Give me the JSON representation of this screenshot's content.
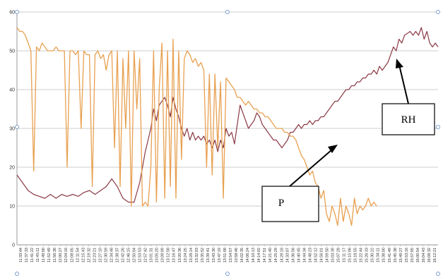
{
  "chart_data": {
    "type": "line",
    "title": "",
    "xlabel": "",
    "ylabel": "",
    "ylim": [
      0,
      60
    ],
    "yticks": [
      0,
      10,
      20,
      30,
      40,
      50,
      60
    ],
    "grid": true,
    "legend": "none",
    "x_tick_labels": [
      "11:33:44",
      "11:37:33",
      "11:41:22",
      "11:45:11",
      "11:49:00",
      "11:52:49",
      "11:56:38",
      "12:00:27",
      "12:04:16",
      "12:08:05",
      "12:11:54",
      "12:15:43",
      "12:19:32",
      "12:23:21",
      "12:27:10",
      "12:30:59",
      "12:34:48",
      "12:38:37",
      "12:42:26",
      "12:46:15",
      "12:50:04",
      "12:53:53",
      "12:57:42",
      "13:01:31",
      "13:05:20",
      "13:09:09",
      "13:12:58",
      "13:16:47",
      "13:20:36",
      "13:24:25",
      "13:28:14",
      "13:32:03",
      "13:35:52",
      "13:39:41",
      "13:43:30",
      "13:47:19",
      "13:51:08",
      "13:54:57",
      "13:58:46",
      "14:02:35",
      "14:06:24",
      "14:10:13",
      "14:14:02",
      "14:17:51",
      "14:21:40",
      "14:25:29",
      "14:29:18",
      "14:33:07",
      "14:36:56",
      "14:40:45",
      "14:44:34",
      "14:48:23",
      "14:52:12",
      "14:56:01",
      "14:59:50",
      "15:03:39",
      "15:07:28",
      "15:11:17",
      "15:15:06",
      "15:18:55",
      "15:22:44",
      "15:26:33",
      "15:30:22",
      "15:34:11",
      "15:38:00",
      "15:41:49",
      "15:45:38",
      "15:49:27",
      "15:53:16",
      "15:57:05",
      "16:00:54",
      "16:04:43",
      "16:08:32",
      "16:12:21"
    ],
    "series": [
      {
        "name": "RH",
        "color": "#8b3a45",
        "values": [
          [
            0,
            18
          ],
          [
            2,
            16
          ],
          [
            4,
            14
          ],
          [
            6,
            13
          ],
          [
            8,
            12.5
          ],
          [
            10,
            12
          ],
          [
            12,
            13
          ],
          [
            14,
            12
          ],
          [
            16,
            13
          ],
          [
            18,
            12.5
          ],
          [
            20,
            13
          ],
          [
            22,
            12.5
          ],
          [
            24,
            13.5
          ],
          [
            26,
            14
          ],
          [
            28,
            13
          ],
          [
            30,
            14
          ],
          [
            32,
            15
          ],
          [
            34,
            17
          ],
          [
            36,
            15
          ],
          [
            38,
            12
          ],
          [
            40,
            11
          ],
          [
            42,
            11
          ],
          [
            44,
            16
          ],
          [
            46,
            24
          ],
          [
            48,
            30
          ],
          [
            49,
            35
          ],
          [
            50,
            32
          ],
          [
            51,
            36
          ],
          [
            52,
            37
          ],
          [
            53,
            38
          ],
          [
            54,
            36
          ],
          [
            55,
            33
          ],
          [
            56,
            38
          ],
          [
            57,
            35
          ],
          [
            58,
            33
          ],
          [
            59,
            30
          ],
          [
            60,
            28
          ],
          [
            61,
            30
          ],
          [
            62,
            27
          ],
          [
            63,
            29
          ],
          [
            64,
            27
          ],
          [
            65,
            28
          ],
          [
            66,
            27
          ],
          [
            67,
            28
          ],
          [
            68,
            26
          ],
          [
            69,
            27
          ],
          [
            70,
            25
          ],
          [
            71,
            27
          ],
          [
            72,
            24
          ],
          [
            73,
            27
          ],
          [
            74,
            25
          ],
          [
            75,
            30
          ],
          [
            76,
            28
          ],
          [
            77,
            29
          ],
          [
            78,
            26
          ],
          [
            79,
            31
          ],
          [
            80,
            36
          ],
          [
            81,
            34
          ],
          [
            82,
            32
          ],
          [
            83,
            30
          ],
          [
            84,
            31
          ],
          [
            85,
            32
          ],
          [
            86,
            34
          ],
          [
            87,
            33
          ],
          [
            88,
            31
          ],
          [
            89,
            30
          ],
          [
            90,
            29
          ],
          [
            91,
            28
          ],
          [
            92,
            27
          ],
          [
            93,
            27
          ],
          [
            94,
            26
          ],
          [
            95,
            25
          ],
          [
            96,
            26
          ],
          [
            97,
            27
          ],
          [
            98,
            29
          ],
          [
            99,
            29
          ],
          [
            100,
            30
          ],
          [
            101,
            31
          ],
          [
            102,
            30
          ],
          [
            103,
            31
          ],
          [
            104,
            31
          ],
          [
            105,
            32
          ],
          [
            106,
            31
          ],
          [
            107,
            32
          ],
          [
            108,
            32
          ],
          [
            109,
            33
          ],
          [
            110,
            33
          ],
          [
            111,
            34
          ],
          [
            112,
            35
          ],
          [
            113,
            36
          ],
          [
            114,
            37
          ],
          [
            115,
            37
          ],
          [
            116,
            38
          ],
          [
            117,
            39
          ],
          [
            118,
            40
          ],
          [
            119,
            40
          ],
          [
            120,
            41
          ],
          [
            121,
            41
          ],
          [
            122,
            42
          ],
          [
            123,
            42
          ],
          [
            124,
            43
          ],
          [
            125,
            43
          ],
          [
            126,
            44
          ],
          [
            127,
            44
          ],
          [
            128,
            45
          ],
          [
            129,
            44
          ],
          [
            130,
            46
          ],
          [
            131,
            45
          ],
          [
            132,
            46
          ],
          [
            133,
            47
          ],
          [
            134,
            49
          ],
          [
            135,
            51
          ],
          [
            136,
            50
          ],
          [
            137,
            53
          ],
          [
            138,
            52
          ],
          [
            139,
            54
          ],
          [
            140,
            54.5
          ],
          [
            141,
            55
          ],
          [
            142,
            54
          ],
          [
            143,
            55
          ],
          [
            144,
            54
          ],
          [
            145,
            56
          ],
          [
            146,
            53
          ],
          [
            147,
            55
          ],
          [
            148,
            52
          ],
          [
            149,
            51
          ],
          [
            150,
            52
          ],
          [
            151,
            51
          ]
        ]
      },
      {
        "name": "P",
        "color": "#e8a050",
        "values": [
          [
            0,
            56
          ],
          [
            1,
            55
          ],
          [
            2,
            55
          ],
          [
            3,
            54
          ],
          [
            4,
            52
          ],
          [
            5,
            50
          ],
          [
            6,
            19
          ],
          [
            7,
            51
          ],
          [
            8,
            50
          ],
          [
            9,
            52
          ],
          [
            10,
            51
          ],
          [
            11,
            50
          ],
          [
            12,
            50
          ],
          [
            13,
            50
          ],
          [
            14,
            51
          ],
          [
            15,
            50
          ],
          [
            16,
            50
          ],
          [
            17,
            50
          ],
          [
            18,
            20
          ],
          [
            19,
            50
          ],
          [
            20,
            50
          ],
          [
            21,
            49
          ],
          [
            22,
            50
          ],
          [
            23,
            30
          ],
          [
            24,
            50
          ],
          [
            25,
            49
          ],
          [
            26,
            49
          ],
          [
            27,
            15
          ],
          [
            28,
            49
          ],
          [
            29,
            50
          ],
          [
            30,
            48
          ],
          [
            31,
            49
          ],
          [
            32,
            45
          ],
          [
            33,
            49
          ],
          [
            34,
            50
          ],
          [
            35,
            25
          ],
          [
            36,
            50
          ],
          [
            37,
            15
          ],
          [
            38,
            48
          ],
          [
            39,
            30
          ],
          [
            40,
            50
          ],
          [
            41,
            10
          ],
          [
            42,
            50
          ],
          [
            43,
            35
          ],
          [
            44,
            48
          ],
          [
            45,
            10
          ],
          [
            46,
            11
          ],
          [
            47,
            10
          ],
          [
            48,
            20
          ],
          [
            49,
            50
          ],
          [
            50,
            11
          ],
          [
            51,
            40
          ],
          [
            52,
            52
          ],
          [
            53,
            12
          ],
          [
            54,
            50
          ],
          [
            55,
            15
          ],
          [
            56,
            53
          ],
          [
            57,
            12
          ],
          [
            58,
            50
          ],
          [
            59,
            22
          ],
          [
            60,
            48
          ],
          [
            61,
            50
          ],
          [
            62,
            49
          ],
          [
            63,
            47
          ],
          [
            64,
            48
          ],
          [
            65,
            46
          ],
          [
            66,
            47
          ],
          [
            67,
            45
          ],
          [
            68,
            20
          ],
          [
            69,
            44
          ],
          [
            70,
            18
          ],
          [
            71,
            44
          ],
          [
            72,
            25
          ],
          [
            73,
            42
          ],
          [
            74,
            12
          ],
          [
            75,
            43
          ],
          [
            76,
            42
          ],
          [
            77,
            41
          ],
          [
            78,
            40
          ],
          [
            79,
            38
          ],
          [
            80,
            38
          ],
          [
            81,
            37
          ],
          [
            82,
            36
          ],
          [
            83,
            37
          ],
          [
            84,
            36
          ],
          [
            85,
            35
          ],
          [
            86,
            35
          ],
          [
            87,
            34
          ],
          [
            88,
            34
          ],
          [
            89,
            33
          ],
          [
            90,
            33
          ],
          [
            91,
            32
          ],
          [
            92,
            31
          ],
          [
            93,
            30
          ],
          [
            94,
            30
          ],
          [
            95,
            30
          ],
          [
            96,
            29
          ],
          [
            97,
            29
          ],
          [
            98,
            28
          ],
          [
            99,
            28
          ],
          [
            100,
            27
          ],
          [
            101,
            25
          ],
          [
            102,
            23
          ],
          [
            103,
            22
          ],
          [
            104,
            20
          ],
          [
            105,
            18
          ],
          [
            106,
            19
          ],
          [
            107,
            16
          ],
          [
            108,
            15
          ],
          [
            109,
            12
          ],
          [
            110,
            14
          ],
          [
            111,
            8
          ],
          [
            112,
            6
          ],
          [
            113,
            10
          ],
          [
            114,
            8
          ],
          [
            115,
            5
          ],
          [
            116,
            12
          ],
          [
            117,
            6
          ],
          [
            118,
            10
          ],
          [
            119,
            8
          ],
          [
            120,
            5
          ],
          [
            121,
            12
          ],
          [
            122,
            8
          ],
          [
            123,
            10
          ],
          [
            124,
            9
          ],
          [
            125,
            10
          ],
          [
            126,
            12
          ],
          [
            127,
            10
          ],
          [
            128,
            11
          ],
          [
            129,
            10
          ]
        ]
      }
    ]
  },
  "annotations": {
    "rh_label": "RH",
    "p_label": "P"
  }
}
